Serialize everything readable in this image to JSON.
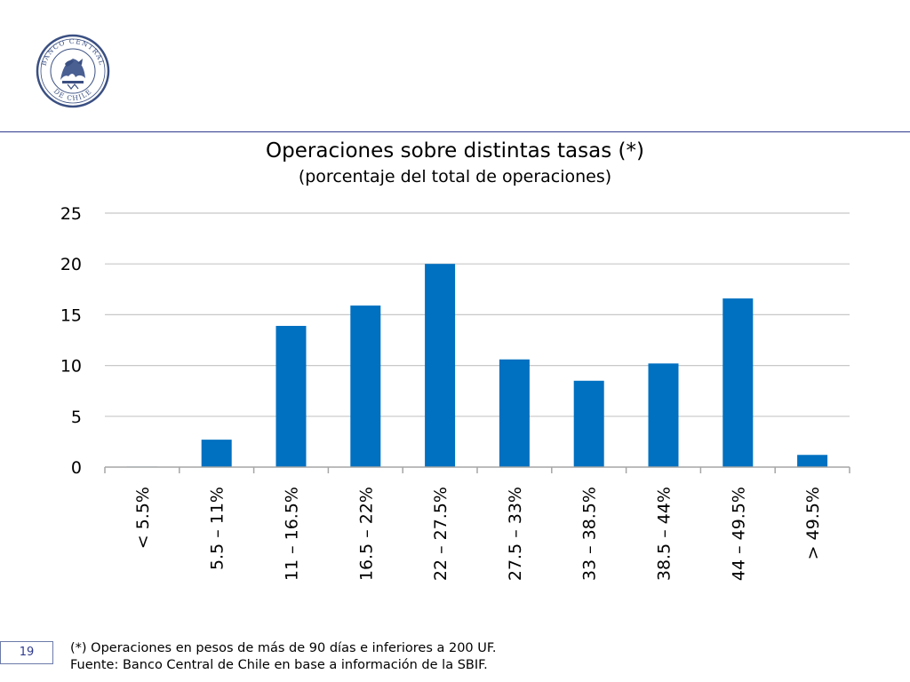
{
  "header": {
    "logo_text_top": "BANCO CENTRAL",
    "logo_text_bottom": "DE CHILE"
  },
  "chart_data": {
    "type": "bar",
    "title": "Operaciones sobre distintas tasas (*)",
    "subtitle": "(porcentaje del total de operaciones)",
    "categories": [
      "< 5.5%",
      "5.5 – 11%",
      "11 – 16.5%",
      "16.5 – 22%",
      "22 – 27.5%",
      "27.5 – 33%",
      "33 – 38.5%",
      "38.5 – 44%",
      "44 – 49.5%",
      "> 49.5%"
    ],
    "values": [
      0.05,
      2.7,
      13.9,
      15.9,
      20.0,
      10.6,
      8.5,
      10.2,
      16.6,
      1.2
    ],
    "yticks": [
      0,
      5,
      10,
      15,
      20,
      25
    ],
    "ylim": [
      0,
      25
    ],
    "xlabel": "",
    "ylabel": "",
    "grid": true,
    "bar_color": "#0070c0"
  },
  "footer": {
    "page_number": "19",
    "note": "(*) Operaciones en pesos de más de 90 días e inferiores a 200 UF.",
    "source": "Fuente: Banco Central de Chile en base a información de la SBIF."
  }
}
